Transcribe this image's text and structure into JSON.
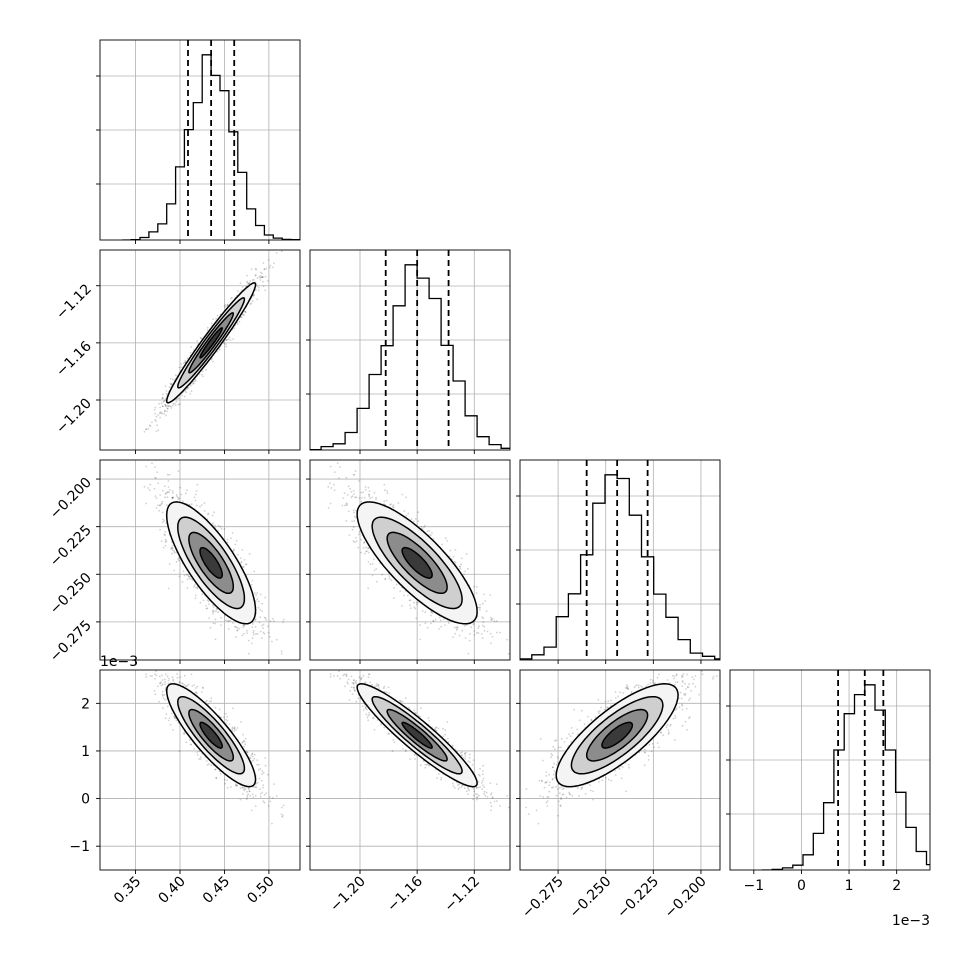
{
  "chart_data": {
    "type": "corner",
    "grid": true,
    "axes_ranges": [
      [
        0.31,
        0.535
      ],
      [
        -1.235,
        -1.095
      ],
      [
        -0.295,
        -0.19
      ],
      [
        -0.0015,
        0.0027
      ]
    ],
    "tick_values": [
      [
        0.35,
        0.4,
        0.45,
        0.5
      ],
      [
        -1.2,
        -1.16,
        -1.12
      ],
      [
        -0.275,
        -0.25,
        -0.225,
        -0.2
      ],
      [
        -0.001,
        0.0,
        0.001,
        0.002
      ]
    ],
    "tick_labels": [
      [
        "0.35",
        "0.40",
        "0.45",
        "0.50"
      ],
      [
        "−1.20",
        "−1.16",
        "−1.12"
      ],
      [
        "−0.275",
        "−0.250",
        "−0.225",
        "−0.200"
      ],
      [
        "−1",
        "0",
        "1",
        "2"
      ]
    ],
    "offset_label": "1e−3",
    "quantiles": [
      [
        0.409,
        0.435,
        0.461
      ],
      [
        -1.182,
        -1.16,
        -1.138
      ],
      [
        -0.26,
        -0.244,
        -0.228
      ],
      [
        0.00077,
        0.00133,
        0.00172
      ]
    ],
    "means": [
      0.435,
      -1.16,
      -0.244,
      0.00133
    ],
    "stds": [
      0.025,
      0.021,
      0.016,
      0.00054
    ],
    "correlations": [
      [
        0,
        1,
        0.97
      ],
      [
        0,
        2,
        -0.78
      ],
      [
        0,
        3,
        -0.86
      ],
      [
        1,
        2,
        -0.8
      ],
      [
        1,
        3,
        -0.93
      ],
      [
        2,
        3,
        0.78
      ]
    ]
  },
  "colors": {
    "hist": "#000000",
    "grid": "#b0b0b0",
    "scatter": "#000000"
  }
}
